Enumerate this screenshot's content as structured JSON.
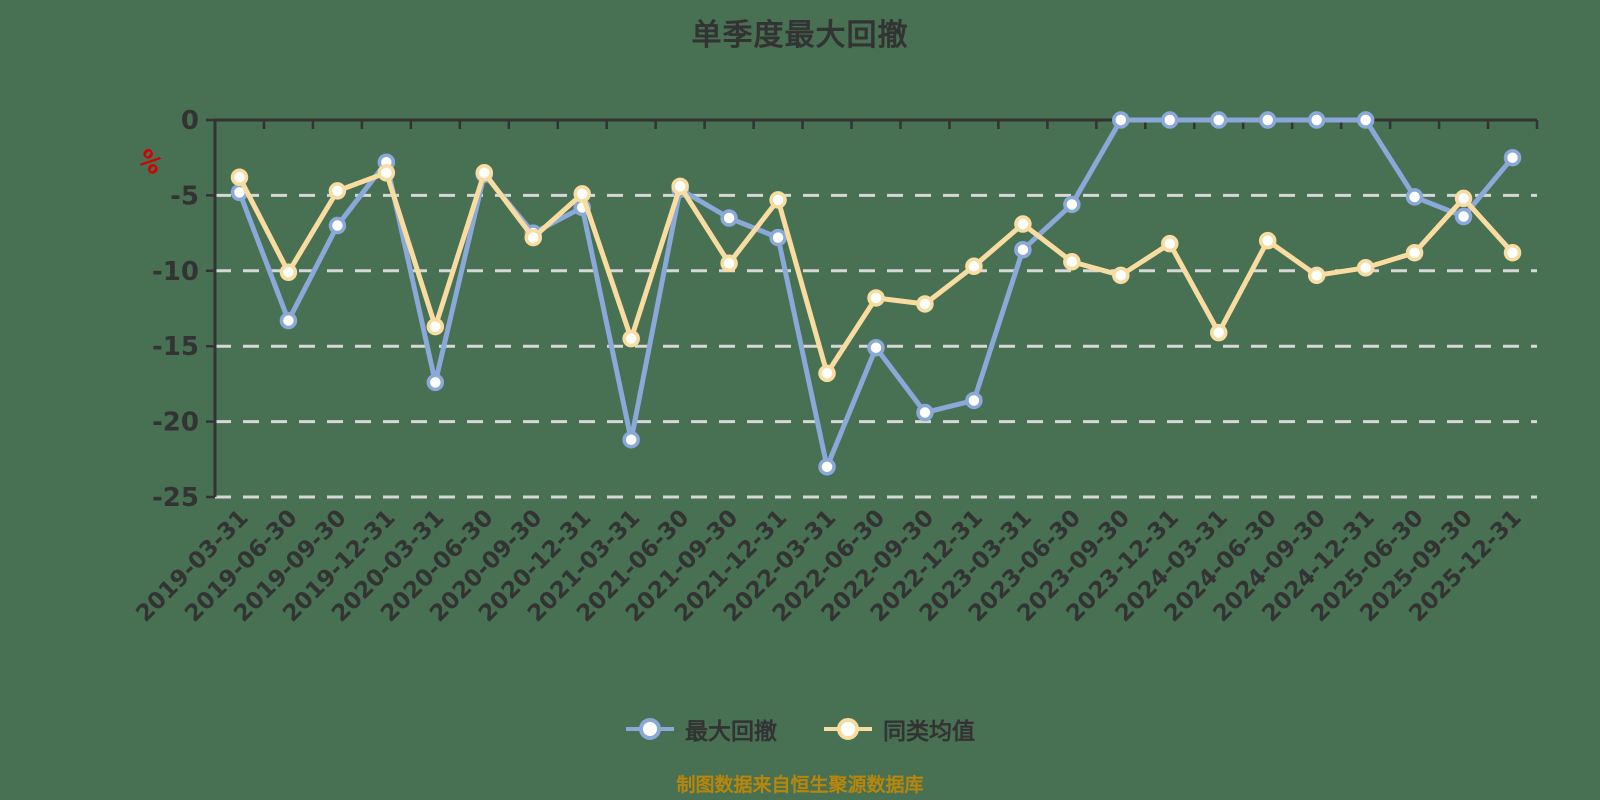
{
  "page": {
    "background_color": "#487053"
  },
  "chart": {
    "title": "单季度最大回撤",
    "y_axis_unit": "%",
    "y_axis_unit_color": "#D40000",
    "legend": [
      {
        "label": "最大回撤",
        "color": "#8AA8D8"
      },
      {
        "label": "同类均值",
        "color": "#F8DCA0"
      }
    ],
    "source_note": "制图数据来自恒生聚源数据库"
  },
  "chart_data": {
    "type": "line",
    "title": "单季度最大回撤",
    "y_unit": "%",
    "ylim": [
      -25,
      0
    ],
    "y_ticks": [
      0,
      -5,
      -10,
      -15,
      -20,
      -25
    ],
    "grid": "horizontal dashed gridlines, x-axis line drawn at value 0 (top), category labels rotated 45 degrees at bottom",
    "legend_position": "bottom center",
    "source_note": "制图数据来自恒生聚源数据库",
    "categories": [
      "2019-03-31",
      "2019-06-30",
      "2019-09-30",
      "2019-12-31",
      "2020-03-31",
      "2020-06-30",
      "2020-09-30",
      "2020-12-31",
      "2021-03-31",
      "2021-06-30",
      "2021-09-30",
      "2021-12-31",
      "2022-03-31",
      "2022-06-30",
      "2022-09-30",
      "2022-12-31",
      "2023-03-31",
      "2023-06-30",
      "2023-09-30",
      "2023-12-31",
      "2024-03-31",
      "2024-06-30",
      "2024-09-30",
      "2024-12-31",
      "2025-06-30",
      "2025-09-30",
      "2025-12-31"
    ],
    "series": [
      {
        "name": "最大回撤",
        "color": "#8AA8D8",
        "values": [
          -4.8,
          -13.3,
          -7.0,
          -2.8,
          -17.4,
          -3.6,
          -7.5,
          -5.8,
          -21.2,
          -4.6,
          -6.5,
          -7.8,
          -23.0,
          -15.1,
          -19.4,
          -18.6,
          -8.6,
          -5.6,
          0,
          0,
          0,
          0,
          0,
          0,
          -5.1,
          -6.4,
          -2.5
        ]
      },
      {
        "name": "同类均值",
        "color": "#F8DCA0",
        "values": [
          -3.8,
          -10.1,
          -4.7,
          -3.5,
          -13.7,
          -3.5,
          -7.8,
          -4.9,
          -14.5,
          -4.4,
          -9.5,
          -5.3,
          -16.8,
          -11.8,
          -12.2,
          -9.7,
          -6.9,
          -9.4,
          -10.3,
          -8.2,
          -14.1,
          -8.0,
          -10.3,
          -9.8,
          -8.8,
          -5.2,
          -8.8
        ]
      }
    ]
  }
}
